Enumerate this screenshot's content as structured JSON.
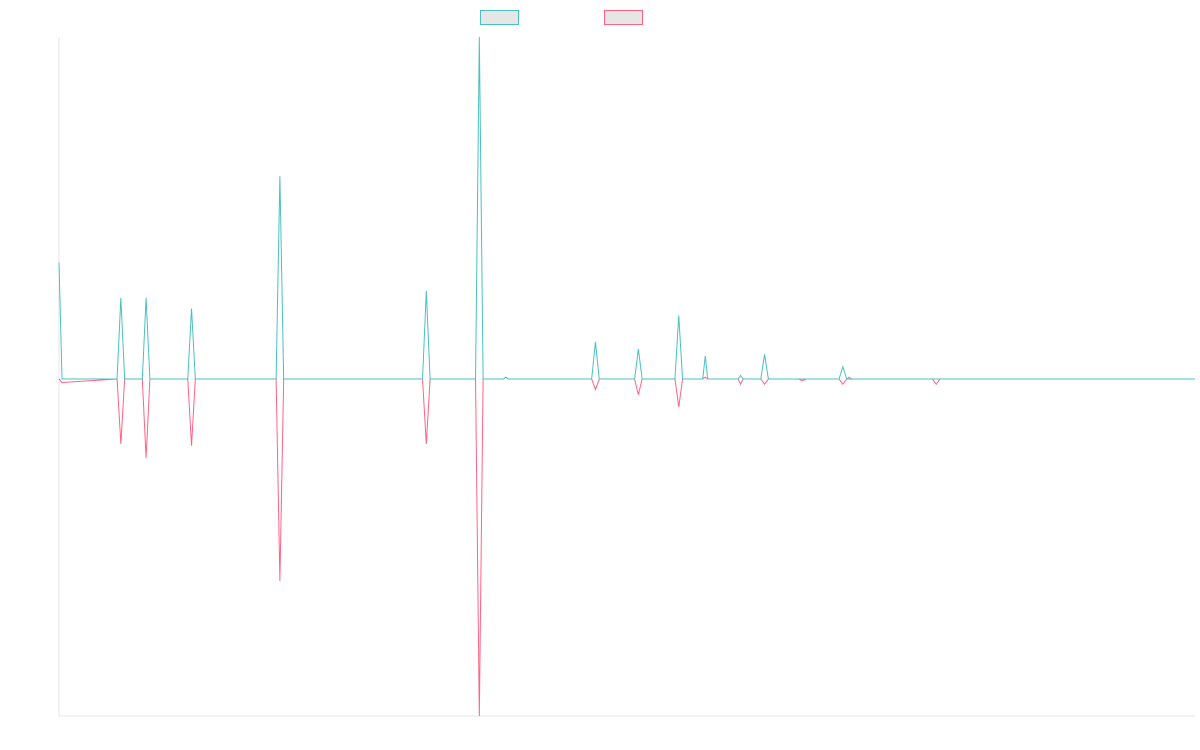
{
  "chart_data": {
    "type": "line",
    "title": "",
    "xlabel": "",
    "ylabel": "",
    "grid": false,
    "legend_placement": "top-center",
    "x_count": 46,
    "ylim": [
      -9.6,
      9.7
    ],
    "series": [
      {
        "name": "",
        "color": "#4bc0c0",
        "values": [
          3.3,
          0,
          0,
          0,
          0,
          0,
          0,
          0,
          0,
          0,
          0,
          2.3,
          0,
          0,
          0,
          9.7,
          0,
          0,
          0,
          0,
          0,
          1.05,
          0,
          0.85,
          0,
          0,
          1.8,
          0,
          0.65,
          0,
          0.1,
          0,
          0.7,
          0,
          0,
          0,
          0,
          0,
          0,
          0.3,
          0,
          0,
          0,
          0,
          0,
          0
        ]
      },
      {
        "name": "",
        "color": "#ff6384",
        "values": [
          0,
          -1.85,
          -2.25,
          -1.9,
          -5.75,
          0,
          0,
          0,
          0,
          0,
          0,
          -1.85,
          0,
          0,
          0,
          -9.6,
          0,
          -0.3,
          -0.45,
          -0.8,
          0,
          0,
          -0.15,
          0,
          0,
          -0.15,
          0,
          0,
          -0.2,
          -0.15,
          0,
          -0.05,
          0,
          0,
          0,
          0,
          0,
          0,
          0,
          0,
          0,
          0,
          0,
          0,
          0,
          0
        ]
      }
    ],
    "x_marks_teal": [
      [
        0,
        3.3
      ],
      [
        0.12,
        0
      ],
      [
        2.3,
        0
      ],
      [
        2.45,
        2.3
      ],
      [
        2.6,
        0
      ],
      [
        3.3,
        0
      ],
      [
        3.45,
        2.3
      ],
      [
        3.6,
        0
      ],
      [
        5.1,
        0
      ],
      [
        5.25,
        2.0
      ],
      [
        5.4,
        0
      ],
      [
        8.6,
        0
      ],
      [
        8.75,
        5.75
      ],
      [
        8.9,
        0
      ],
      [
        14.4,
        0
      ],
      [
        14.55,
        2.5
      ],
      [
        14.7,
        0
      ],
      [
        16.5,
        0
      ],
      [
        16.65,
        9.7
      ],
      [
        16.8,
        0
      ],
      [
        17.6,
        0
      ],
      [
        17.7,
        0.05
      ],
      [
        17.8,
        0
      ],
      [
        21.1,
        0
      ],
      [
        21.25,
        1.05
      ],
      [
        21.4,
        0
      ],
      [
        22.8,
        0
      ],
      [
        22.95,
        0.85
      ],
      [
        23.1,
        0
      ],
      [
        24.4,
        0
      ],
      [
        24.55,
        1.8
      ],
      [
        24.7,
        0
      ],
      [
        25.5,
        0
      ],
      [
        25.6,
        0.65
      ],
      [
        25.7,
        0
      ],
      [
        26.9,
        0
      ],
      [
        27.0,
        0.1
      ],
      [
        27.1,
        0
      ],
      [
        27.8,
        0
      ],
      [
        27.95,
        0.7
      ],
      [
        28.1,
        0
      ],
      [
        30.9,
        0
      ],
      [
        31.05,
        0.35
      ],
      [
        31.2,
        0
      ],
      [
        31.3,
        0.05
      ],
      [
        31.4,
        0
      ],
      [
        34.6,
        0
      ],
      [
        34.7,
        0
      ],
      [
        34.8,
        0
      ],
      [
        34.9,
        0
      ],
      [
        35.0,
        0
      ],
      [
        35.1,
        0
      ],
      [
        45,
        0
      ]
    ],
    "x_marks_pink": [
      [
        0,
        0
      ],
      [
        0.12,
        -0.1
      ],
      [
        2.3,
        0
      ],
      [
        2.45,
        -1.85
      ],
      [
        2.6,
        0
      ],
      [
        3.3,
        0
      ],
      [
        3.45,
        -2.25
      ],
      [
        3.6,
        0
      ],
      [
        5.1,
        0
      ],
      [
        5.25,
        -1.9
      ],
      [
        5.4,
        0
      ],
      [
        8.6,
        0
      ],
      [
        8.75,
        -5.75
      ],
      [
        8.9,
        0
      ],
      [
        14.4,
        0
      ],
      [
        14.55,
        -1.85
      ],
      [
        14.7,
        0
      ],
      [
        16.5,
        0
      ],
      [
        16.65,
        -9.6
      ],
      [
        16.8,
        0
      ],
      [
        17.6,
        0
      ],
      [
        17.7,
        0.05
      ],
      [
        17.8,
        0
      ],
      [
        21.1,
        0
      ],
      [
        21.25,
        -0.3
      ],
      [
        21.4,
        0
      ],
      [
        22.8,
        0
      ],
      [
        22.95,
        -0.45
      ],
      [
        23.1,
        0
      ],
      [
        24.4,
        0
      ],
      [
        24.55,
        -0.8
      ],
      [
        24.7,
        0
      ],
      [
        25.5,
        0
      ],
      [
        25.6,
        0.05
      ],
      [
        25.7,
        0
      ],
      [
        26.9,
        0
      ],
      [
        27.0,
        -0.15
      ],
      [
        27.1,
        0
      ],
      [
        27.8,
        0
      ],
      [
        27.95,
        -0.15
      ],
      [
        28.1,
        0
      ],
      [
        29.3,
        0
      ],
      [
        29.45,
        -0.05
      ],
      [
        29.6,
        0
      ],
      [
        30.9,
        0
      ],
      [
        31.05,
        -0.15
      ],
      [
        31.2,
        0
      ],
      [
        33.2,
        0
      ],
      [
        33.3,
        0
      ],
      [
        33.4,
        0
      ],
      [
        34.6,
        0
      ],
      [
        34.75,
        -0.15
      ],
      [
        34.9,
        0
      ],
      [
        45,
        0
      ]
    ]
  }
}
